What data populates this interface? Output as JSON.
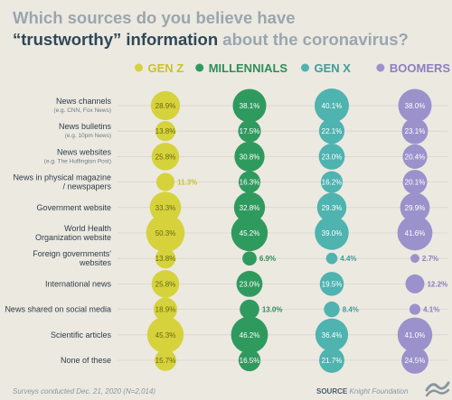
{
  "title": {
    "line1": "Which sources do you believe have",
    "line2_bold": "“trustworthy” information",
    "line2_rest": " about the coronavirus?"
  },
  "footer": {
    "survey_note": "Surveys conducted Dec. 21, 2020 (N=2,014)",
    "source_label": "SOURCE",
    "source_name": " Knight Foundation"
  },
  "logo": {
    "icon": "wave-logo-icon"
  },
  "chart_data": {
    "type": "bubble-grid",
    "title": "Which sources do you believe have “trustworthy” information about the coronavirus?",
    "unit": "%",
    "categories": [
      {
        "label": [
          "News channels"
        ],
        "sub": "(e.g. CNN, Fox News)"
      },
      {
        "label": [
          "News bulletins"
        ],
        "sub": "(e.g. 10pm News)"
      },
      {
        "label": [
          "News websites"
        ],
        "sub": "(e.g. The Huffington Post)"
      },
      {
        "label": [
          "News in physical magazine",
          "/ newspapers"
        ],
        "sub": ""
      },
      {
        "label": [
          "Government website"
        ],
        "sub": ""
      },
      {
        "label": [
          "World Health",
          "Organization website"
        ],
        "sub": ""
      },
      {
        "label": [
          "Foreign governments'",
          "websites"
        ],
        "sub": ""
      },
      {
        "label": [
          "International news"
        ],
        "sub": ""
      },
      {
        "label": [
          "News shared on social media"
        ],
        "sub": ""
      },
      {
        "label": [
          "Scientific articles"
        ],
        "sub": ""
      },
      {
        "label": [
          "None of these"
        ],
        "sub": ""
      }
    ],
    "series": [
      {
        "name": "GEN Z",
        "color": "#d6d23c",
        "label_color": "#c9c22a",
        "dark_label": "#6b6812",
        "values": [
          28.9,
          13.8,
          25.8,
          11.3,
          33.3,
          50.3,
          13.8,
          25.8,
          18.9,
          45.3,
          15.7
        ]
      },
      {
        "name": "MILLENNIALS",
        "color": "#2f9a5e",
        "label_color": "#2e8f57",
        "dark_label": "#ffffff",
        "values": [
          38.1,
          17.5,
          30.8,
          16.3,
          32.8,
          45.2,
          6.9,
          23.0,
          13.0,
          46.2,
          16.5
        ]
      },
      {
        "name": "GEN X",
        "color": "#4fb3b0",
        "label_color": "#3f9c99",
        "dark_label": "#ffffff",
        "values": [
          40.1,
          22.1,
          23.0,
          16.2,
          29.3,
          39.0,
          4.4,
          19.5,
          8.4,
          36.4,
          21.7
        ]
      },
      {
        "name": "BOOMERS",
        "color": "#9b92cc",
        "label_color": "#8a80bf",
        "dark_label": "#ffffff",
        "values": [
          38.0,
          23.1,
          20.4,
          20.1,
          29.9,
          41.6,
          2.7,
          12.2,
          4.1,
          41.0,
          24.5
        ]
      }
    ],
    "value_labels": [
      [
        "28.9%",
        "13.8%",
        "25.8%",
        "11.3%",
        "33.3%",
        "50.3%",
        "13.8%",
        "25.8%",
        "18.9%",
        "45.3%",
        "15.7%"
      ],
      [
        "38.1%",
        "17.5%",
        "30.8%",
        "16.3%",
        "32.8%",
        "45.2%",
        "6.9%",
        "23.0%",
        "13.0%",
        "46.2%",
        "16.5%"
      ],
      [
        "40.1%",
        "22.1%",
        "23.0%",
        "16.2%",
        "29.3%",
        "39.0%",
        "4.4%",
        "19.5%",
        "8.4%",
        "36.4%",
        "21.7%"
      ],
      [
        "38.0%",
        "23.1%",
        "20.4%",
        "20.1%",
        "29.9%",
        "41.6%",
        "2.7%",
        "12.2%",
        "4.1%",
        "41.0%",
        "24.5%"
      ]
    ],
    "legend_placement": "top"
  }
}
